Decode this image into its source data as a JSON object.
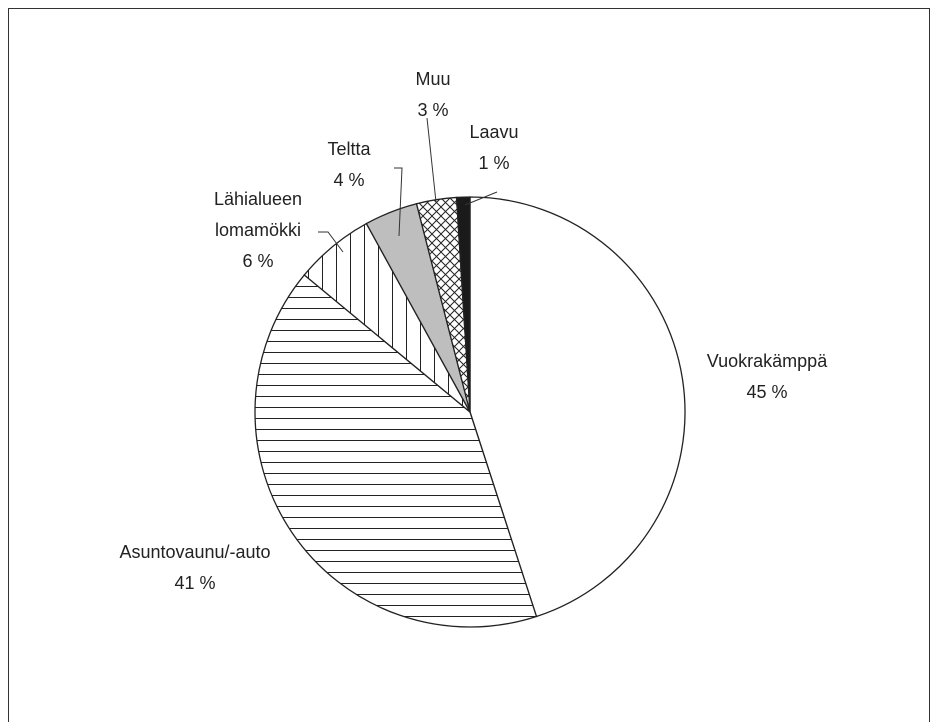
{
  "chart_data": {
    "type": "pie",
    "categories": [
      "Vuokrakämppä",
      "Asuntovaunu/-auto",
      "Lähialueen lomamökki",
      "Teltta",
      "Muu",
      "Laavu"
    ],
    "values": [
      45,
      41,
      6,
      4,
      3,
      1
    ],
    "value_labels": [
      "45 %",
      "41 %",
      "6 %",
      "4 %",
      "3 %",
      "1 %"
    ],
    "colors": [
      "#ffffff",
      "#ffffff",
      "#ffffff",
      "#bebebe",
      "#ffffff",
      "#1a1a1a"
    ],
    "patterns": [
      "none",
      "horizontal",
      "vertical",
      "none",
      "crosshatch",
      "none"
    ],
    "start_angle": 0,
    "direction": "clockwise"
  }
}
